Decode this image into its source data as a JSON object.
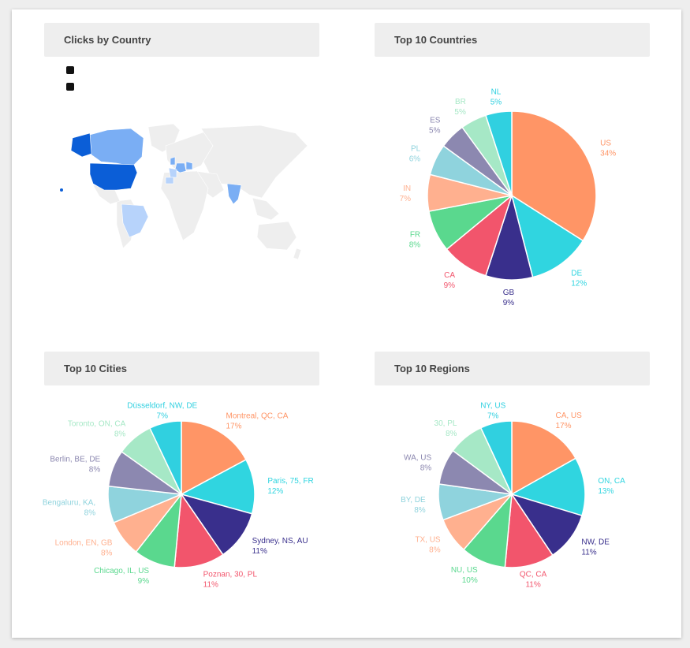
{
  "panels": {
    "map": {
      "title": "Clicks by Country"
    },
    "countries": {
      "title": "Top 10 Countries"
    },
    "cities": {
      "title": "Top 10 Cities"
    },
    "regions": {
      "title": "Top 10 Regions"
    }
  },
  "colors": [
    "#ff9566",
    "#30d5e0",
    "#392f8c",
    "#f2556c",
    "#5ad88e",
    "#ffb08f",
    "#8fd3dd",
    "#8c88b0",
    "#a6e8c6",
    "#30d0e0"
  ],
  "map_colors": {
    "land": "#eeeeee",
    "high": "#0b5ed7",
    "mid": "#7aaef4",
    "low": "#b7d3fb"
  },
  "chart_data": [
    {
      "type": "pie",
      "title": "Top 10 Countries",
      "categories": [
        "US",
        "DE",
        "GB",
        "CA",
        "FR",
        "IN",
        "PL",
        "ES",
        "BR",
        "NL"
      ],
      "values": [
        34,
        12,
        9,
        9,
        8,
        7,
        6,
        5,
        5,
        5
      ],
      "labels": [
        "34%",
        "12%",
        "9%",
        "9%",
        "8%",
        "7%",
        "6%",
        "5%",
        "5%",
        "5%"
      ]
    },
    {
      "type": "pie",
      "title": "Top 10 Cities",
      "categories": [
        "Montreal, QC, CA",
        "Paris, 75, FR",
        "Sydney, NS, AU",
        "Poznan, 30, PL",
        "Chicago, IL, US",
        "London, EN, GB",
        "Bengaluru, KA, ",
        "Berlin, BE, DE",
        "Toronto, ON, CA",
        "Düsseldorf, NW, DE"
      ],
      "values": [
        17,
        12,
        11,
        11,
        9,
        8,
        8,
        8,
        8,
        7
      ],
      "labels": [
        "17%",
        "12%",
        "11%",
        "11%",
        "9%",
        "8%",
        "8%",
        "8%",
        "8%",
        "7%"
      ]
    },
    {
      "type": "pie",
      "title": "Top 10 Regions",
      "categories": [
        "CA, US",
        "ON, CA",
        "NW, DE",
        "QC, CA",
        "NU, US",
        "TX, US",
        "BY, DE",
        "WA, US",
        "30, PL",
        "NY, US"
      ],
      "values": [
        17,
        13,
        11,
        11,
        10,
        8,
        8,
        8,
        8,
        7
      ],
      "labels": [
        "17%",
        "13%",
        "11%",
        "11%",
        "10%",
        "8%",
        "8%",
        "8%",
        "8%",
        "7%"
      ]
    }
  ]
}
